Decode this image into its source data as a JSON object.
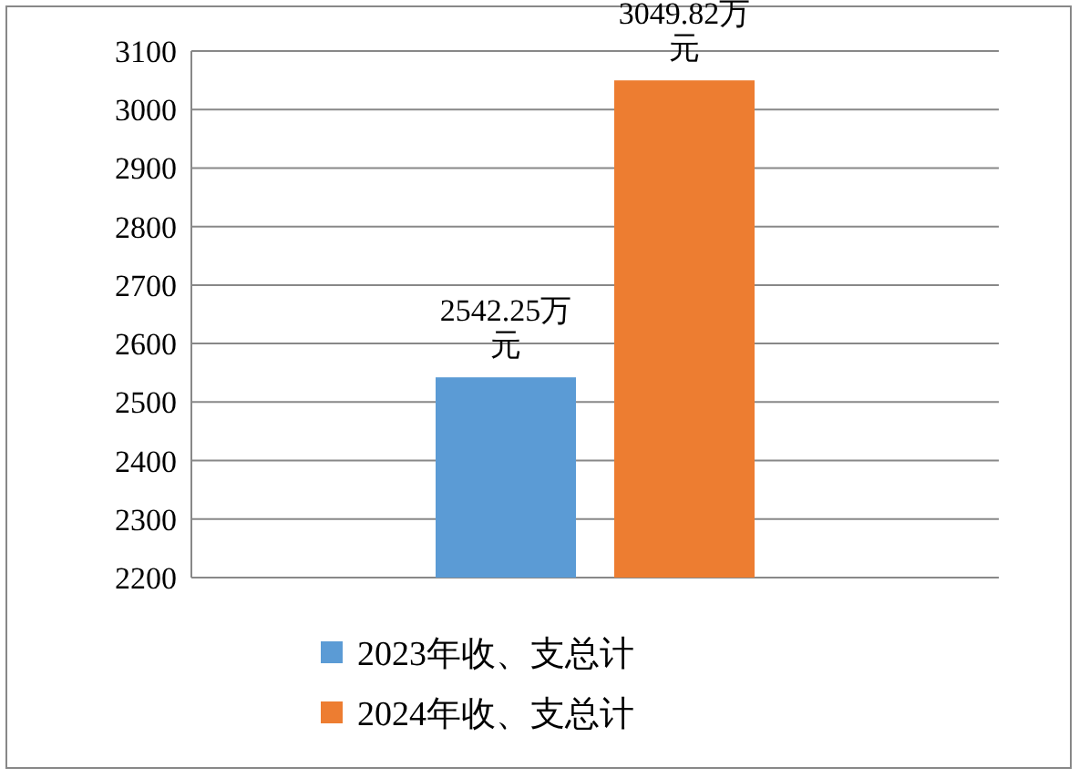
{
  "chart_data": {
    "type": "bar",
    "categories": [
      null
    ],
    "series": [
      {
        "name": "2023年收、支总计",
        "color": "#5b9bd5",
        "values": [
          2542.25
        ],
        "value_labels": [
          "2542.25万元"
        ]
      },
      {
        "name": "2024年收、支总计",
        "color": "#ed7d31",
        "values": [
          3049.82
        ],
        "value_labels": [
          "3049.82万元"
        ]
      }
    ],
    "ylim": [
      2200,
      3100
    ],
    "yticks": [
      2200,
      2300,
      2400,
      2500,
      2600,
      2700,
      2800,
      2900,
      3000,
      3100
    ],
    "grid": "y",
    "legend": "bottom"
  }
}
